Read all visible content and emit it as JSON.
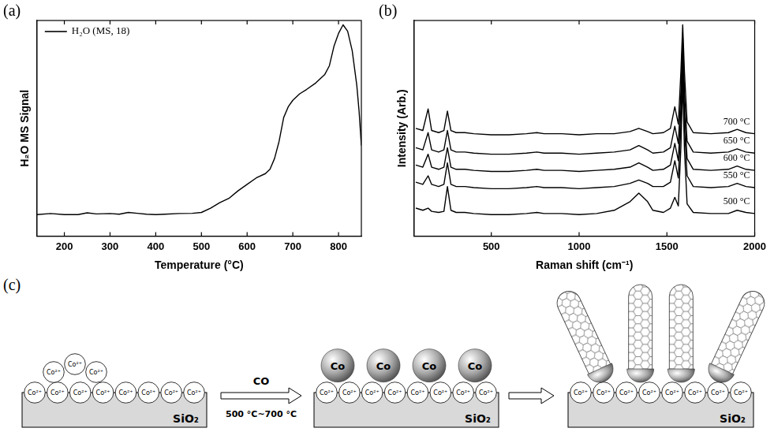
{
  "chart_data": [
    {
      "type": "line",
      "panel_label": "(a)",
      "x_label": "Temperature (°C)",
      "y_label": "H₂O MS Signal",
      "x": [
        140,
        170,
        200,
        230,
        250,
        270,
        300,
        320,
        340,
        360,
        380,
        400,
        420,
        450,
        480,
        500,
        520,
        540,
        560,
        580,
        600,
        620,
        640,
        650,
        660,
        670,
        680,
        690,
        700,
        715,
        730,
        750,
        770,
        780,
        790,
        800,
        810,
        820,
        830,
        840,
        845,
        850
      ],
      "series": [
        {
          "name": "H₂O (MS, 18)",
          "color": "#000000",
          "values": [
            10,
            10.5,
            10,
            10,
            10.8,
            10.3,
            10.5,
            10.2,
            11,
            10.6,
            10.2,
            10,
            10.2,
            10.5,
            10.6,
            11,
            13,
            15.5,
            17.5,
            21,
            24,
            27,
            29,
            31,
            36,
            44,
            55,
            60,
            63,
            66,
            68,
            71,
            75,
            79,
            88,
            94,
            98,
            95,
            86,
            70,
            58,
            42
          ]
        }
      ],
      "xlim": [
        140,
        850
      ],
      "xticks": [
        200,
        300,
        400,
        500,
        600,
        700,
        800
      ],
      "ylim": [
        0,
        100
      ],
      "grid": false,
      "legend": "upper left",
      "tick_labels": "x"
    },
    {
      "type": "line",
      "panel_label": "(b)",
      "x_label": "Raman shift (cm⁻¹)",
      "y_label": "Intensity (Arb.)",
      "x": [
        70,
        110,
        140,
        160,
        200,
        230,
        250,
        270,
        300,
        350,
        400,
        500,
        600,
        700,
        760,
        800,
        900,
        1000,
        1100,
        1200,
        1290,
        1340,
        1390,
        1420,
        1480,
        1520,
        1545,
        1565,
        1580,
        1590,
        1600,
        1615,
        1650,
        1750,
        1850,
        1900,
        1950,
        2000
      ],
      "series": [
        {
          "name": "500 °C",
          "color": "#000000",
          "values": [
            13,
            12,
            13,
            11.5,
            11,
            11.5,
            23,
            12,
            11,
            11,
            10.5,
            10,
            10,
            10.5,
            11,
            10.5,
            10.5,
            10,
            10.5,
            12,
            16,
            20,
            16,
            12,
            11,
            13,
            18,
            14,
            42,
            72,
            40,
            15,
            11,
            10.5,
            10.5,
            12,
            11,
            10.5
          ]
        },
        {
          "name": "550 °C",
          "color": "#000000",
          "values": [
            25,
            24,
            28,
            24,
            23,
            24,
            34,
            24,
            23,
            23,
            22.5,
            22,
            22,
            22.5,
            23,
            22.5,
            22.5,
            22,
            22.5,
            23,
            24.5,
            26,
            24.5,
            23,
            23,
            25,
            35,
            27,
            52,
            82,
            50,
            28,
            23,
            22.5,
            23,
            24.5,
            23,
            22.5
          ]
        },
        {
          "name": "600 °C",
          "color": "#000000",
          "values": [
            33,
            32,
            38,
            32,
            31,
            32,
            41,
            32,
            31,
            31,
            30.5,
            30,
            30,
            30.5,
            31,
            30.5,
            30.5,
            30,
            30.5,
            31,
            32,
            34,
            32,
            30.5,
            31,
            33,
            43,
            35,
            60,
            88,
            58,
            36,
            31,
            30.5,
            31,
            32.5,
            31,
            30.5
          ]
        },
        {
          "name": "650 °C",
          "color": "#000000",
          "values": [
            41,
            40,
            48,
            40,
            39,
            40,
            49,
            40,
            39,
            39,
            38.5,
            38,
            38,
            38.5,
            39,
            38.5,
            38.5,
            38,
            38.5,
            39,
            40,
            42,
            40,
            38.5,
            39,
            41,
            51,
            43,
            67,
            93,
            66,
            44,
            39,
            38.5,
            39,
            40.5,
            39,
            38.5
          ]
        },
        {
          "name": "700 °C",
          "color": "#000000",
          "values": [
            50,
            49,
            59,
            49,
            48,
            49,
            58,
            49,
            48,
            48,
            47.5,
            47,
            47,
            47.5,
            48,
            47.5,
            47.5,
            47,
            47.5,
            47.5,
            48.5,
            50,
            48.5,
            47.5,
            48,
            50,
            60,
            52,
            77,
            98,
            76,
            53,
            48,
            47.5,
            48,
            49.5,
            48,
            47.5
          ]
        }
      ],
      "xlim": [
        60,
        2000
      ],
      "xticks": [
        500,
        1000,
        1500,
        2000
      ],
      "ylim": [
        0,
        100
      ],
      "grid": false,
      "legend": "right",
      "tick_labels": "x"
    }
  ],
  "diagram": {
    "panel_label": "(c)",
    "arrows": [
      {
        "above": "CO",
        "below": "500 °C~700 °C"
      }
    ],
    "stages": [
      {
        "substrate": "SiO₂",
        "ions": [
          "Co²⁺",
          "Co²⁺",
          "Co²⁺",
          "Co²⁺",
          "Co²⁺",
          "Co²⁺",
          "Co²⁺",
          "Co²⁺"
        ],
        "raised_ions": [
          "Co²⁺",
          "Co²⁺",
          "Co²⁺"
        ]
      },
      {
        "substrate": "SiO₂",
        "ions": [
          "Co²⁺",
          "Co²⁺",
          "Co²⁺",
          "Co²⁺",
          "Co²⁺",
          "Co²⁺",
          "Co²⁺",
          "Co²⁺"
        ],
        "particles": [
          "Co",
          "Co",
          "Co",
          "Co"
        ]
      },
      {
        "substrate": "SiO₂",
        "ions": [
          "Co²⁺",
          "Co²⁺",
          "Co²⁺",
          "Co²⁺",
          "Co²⁺",
          "Co²⁺",
          "Co²⁺",
          "Co²⁺"
        ],
        "nanotubes": 4
      }
    ]
  }
}
